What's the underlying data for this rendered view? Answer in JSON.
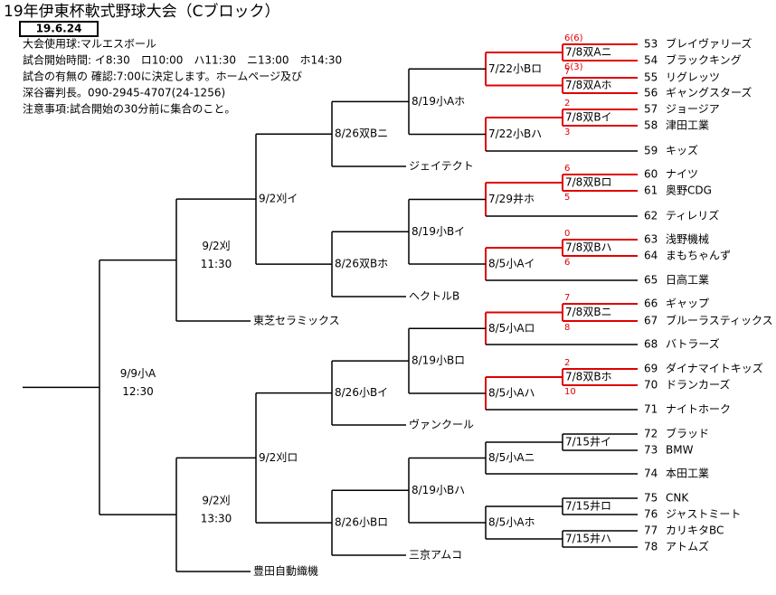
{
  "header": {
    "title": "19年伊東杯軟式野球大会（Cブロック）",
    "date": "19.6.24",
    "notes": [
      "大会使用球:マルエスボール",
      "試合開始時間: イ8:30　ロ10:00　ハ11:30　ニ13:00　ホ14:30",
      "試合の有無の 確認:7:00に決定します。ホームページ及び",
      "深谷審判長。090-2945-4707(24-1256)",
      "注意事項:試合開始の30分前に集合のこと。"
    ]
  },
  "teams": [
    {
      "no": 53,
      "name": "ブレイヴァリーズ"
    },
    {
      "no": 54,
      "name": "ブラックキング"
    },
    {
      "no": 55,
      "name": "リグレッツ"
    },
    {
      "no": 56,
      "name": "ギャングスターズ"
    },
    {
      "no": 57,
      "name": "ジョージア"
    },
    {
      "no": 58,
      "name": "津田工業"
    },
    {
      "no": 59,
      "name": "キッズ"
    },
    {
      "no": 60,
      "name": "ナイツ"
    },
    {
      "no": 61,
      "name": "奥野CDG"
    },
    {
      "no": 62,
      "name": "ティレリズ"
    },
    {
      "no": 63,
      "name": "浅野機械"
    },
    {
      "no": 64,
      "name": "まもちゃんず"
    },
    {
      "no": 65,
      "name": "日高工業"
    },
    {
      "no": 66,
      "name": "ギャップ"
    },
    {
      "no": 67,
      "name": "ブルーラスティックス"
    },
    {
      "no": 68,
      "name": "バトラーズ"
    },
    {
      "no": 69,
      "name": "ダイナマイトキッズ"
    },
    {
      "no": 70,
      "name": "ドランカーズ"
    },
    {
      "no": 71,
      "name": "ナイトホーク"
    },
    {
      "no": 72,
      "name": "ブラッド"
    },
    {
      "no": 73,
      "name": "BMW"
    },
    {
      "no": 74,
      "name": "本田工業"
    },
    {
      "no": 75,
      "name": "CNK"
    },
    {
      "no": 76,
      "name": "ジャストミート"
    },
    {
      "no": 77,
      "name": "カリキタBC"
    },
    {
      "no": 78,
      "name": "アトムズ"
    }
  ],
  "seeds": [
    "ジェイテクト",
    "ヘクトルB",
    "ヴァンクール",
    "三京アムコ",
    "東芝セラミックス",
    "豊田自動織機"
  ],
  "matches": [
    {
      "label": "7/8双Aニ",
      "scores": [
        "6(6)",
        "6(3)"
      ]
    },
    {
      "label": "7/8双Aホ",
      "scores": [
        "7"
      ]
    },
    {
      "label": "7/8双Bイ",
      "scores": [
        "2",
        "3"
      ]
    },
    {
      "label": "7/8双Bロ",
      "scores": [
        "6",
        "5"
      ]
    },
    {
      "label": "7/8双Bハ",
      "scores": [
        "0",
        "6"
      ]
    },
    {
      "label": "7/8双Bニ",
      "scores": [
        "7",
        "8"
      ]
    },
    {
      "label": "7/8双Bホ",
      "scores": [
        "2",
        "10"
      ]
    },
    {
      "label": "7/15井イ"
    },
    {
      "label": "7/15井ロ"
    },
    {
      "label": "7/15井ハ"
    },
    {
      "label": "7/22小Bロ"
    },
    {
      "label": "7/22小Bハ"
    },
    {
      "label": "7/29井ホ"
    },
    {
      "label": "8/5小Aイ"
    },
    {
      "label": "8/5小Aロ"
    },
    {
      "label": "8/5小Aハ"
    },
    {
      "label": "8/5小Aニ"
    },
    {
      "label": "8/5小Aホ"
    },
    {
      "label": "8/19小Aホ"
    },
    {
      "label": "8/19小Bイ"
    },
    {
      "label": "8/19小Bロ"
    },
    {
      "label": "8/19小Bハ"
    },
    {
      "label": "8/26双Bニ"
    },
    {
      "label": "8/26双Bホ"
    },
    {
      "label": "8/26小Bイ"
    },
    {
      "label": "8/26小Bロ"
    },
    {
      "label": "9/2刈イ"
    },
    {
      "label": "9/2刈ロ"
    },
    {
      "label": "9/2刈",
      "time": "11:30"
    },
    {
      "label": "9/2刈",
      "time": "13:30"
    },
    {
      "label": "9/9小A",
      "time": "12:30"
    }
  ]
}
